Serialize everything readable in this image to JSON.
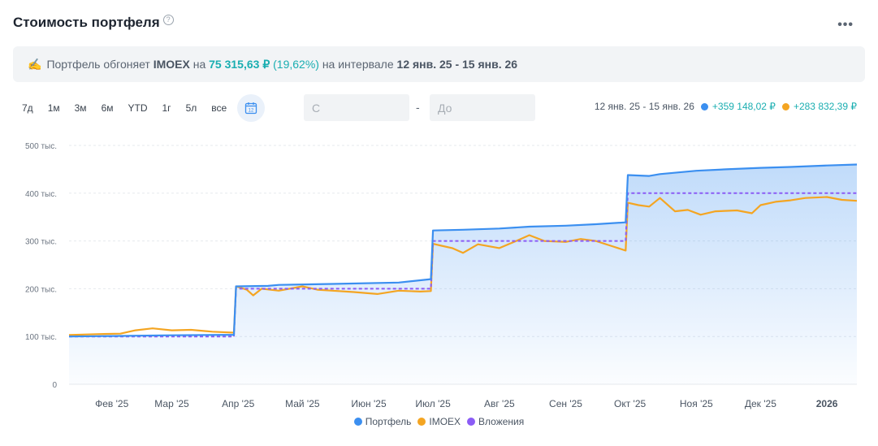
{
  "header": {
    "title": "Стоимость портфеля",
    "help": "?",
    "more": "•••"
  },
  "banner": {
    "icon": "✍",
    "text1": "Портфель обгоняет",
    "index": "IMOEX",
    "text2": "на",
    "amount": "75 315,63 ₽",
    "percent": "(19,62%)",
    "text3": "на интервале",
    "interval": "12 янв. 25 - 15 янв. 26"
  },
  "periods": [
    "7д",
    "1м",
    "3м",
    "6м",
    "YTD",
    "1г",
    "5л",
    "все"
  ],
  "date_from": {
    "placeholder": "С"
  },
  "date_to": {
    "placeholder": "До"
  },
  "dash": "-",
  "summary": {
    "range": "12 янв. 25 - 15 янв. 26",
    "portfolio_value": "+359 148,02 ₽",
    "imoex_value": "+283 832,39 ₽"
  },
  "colors": {
    "portfolio": "#3b8ff0",
    "imoex": "#f4a522",
    "invest": "#8b5cf6",
    "accent": "#1aaeb1"
  },
  "chart_data": {
    "type": "line",
    "x_range": [
      "2025-01-12",
      "2026-01-15"
    ],
    "ylim": [
      0,
      500000
    ],
    "y_ticks": [
      0,
      100000,
      200000,
      300000,
      400000,
      500000
    ],
    "y_tick_labels": [
      "0",
      "100 тыс.",
      "200 тыс.",
      "300 тыс.",
      "400 тыс.",
      "500 тыс."
    ],
    "x_ticks": [
      {
        "label": "Фев '25",
        "date": "2025-02-01"
      },
      {
        "label": "Мар '25",
        "date": "2025-03-01"
      },
      {
        "label": "Апр '25",
        "date": "2025-04-01"
      },
      {
        "label": "Май '25",
        "date": "2025-05-01"
      },
      {
        "label": "Июн '25",
        "date": "2025-06-01"
      },
      {
        "label": "Июл '25",
        "date": "2025-07-01"
      },
      {
        "label": "Авг '25",
        "date": "2025-08-01"
      },
      {
        "label": "Сен '25",
        "date": "2025-09-01"
      },
      {
        "label": "Окт '25",
        "date": "2025-10-01"
      },
      {
        "label": "Ноя '25",
        "date": "2025-11-01"
      },
      {
        "label": "Дек '25",
        "date": "2025-12-01"
      },
      {
        "label": "2026",
        "date": "2026-01-01"
      }
    ],
    "series": [
      {
        "name": "Портфель",
        "color": "#3b8ff0",
        "points": [
          [
            "2025-01-12",
            100000
          ],
          [
            "2025-02-01",
            101000
          ],
          [
            "2025-03-01",
            102500
          ],
          [
            "2025-03-30",
            103500
          ],
          [
            "2025-03-31",
            205000
          ],
          [
            "2025-04-15",
            206000
          ],
          [
            "2025-04-20",
            208000
          ],
          [
            "2025-05-15",
            210000
          ],
          [
            "2025-06-15",
            213000
          ],
          [
            "2025-06-30",
            220000
          ],
          [
            "2025-07-01",
            322000
          ],
          [
            "2025-07-15",
            323500
          ],
          [
            "2025-08-01",
            326000
          ],
          [
            "2025-08-15",
            330000
          ],
          [
            "2025-09-01",
            332000
          ],
          [
            "2025-09-15",
            335000
          ],
          [
            "2025-09-29",
            339000
          ],
          [
            "2025-09-30",
            438000
          ],
          [
            "2025-10-10",
            436000
          ],
          [
            "2025-10-15",
            440000
          ],
          [
            "2025-11-01",
            447000
          ],
          [
            "2025-11-15",
            450000
          ],
          [
            "2025-12-01",
            453000
          ],
          [
            "2025-12-15",
            455000
          ],
          [
            "2026-01-01",
            458000
          ],
          [
            "2026-01-15",
            460000
          ]
        ]
      },
      {
        "name": "IMOEX",
        "color": "#f4a522",
        "points": [
          [
            "2025-01-12",
            103000
          ],
          [
            "2025-01-25",
            105000
          ],
          [
            "2025-02-05",
            106000
          ],
          [
            "2025-02-12",
            113000
          ],
          [
            "2025-02-20",
            117000
          ],
          [
            "2025-03-01",
            113000
          ],
          [
            "2025-03-10",
            114000
          ],
          [
            "2025-03-20",
            110000
          ],
          [
            "2025-03-30",
            108000
          ],
          [
            "2025-03-31",
            205000
          ],
          [
            "2025-04-05",
            198000
          ],
          [
            "2025-04-08",
            186000
          ],
          [
            "2025-04-12",
            200000
          ],
          [
            "2025-04-20",
            196000
          ],
          [
            "2025-05-01",
            205000
          ],
          [
            "2025-05-08",
            198000
          ],
          [
            "2025-05-15",
            196000
          ],
          [
            "2025-05-25",
            193000
          ],
          [
            "2025-06-05",
            189000
          ],
          [
            "2025-06-15",
            196000
          ],
          [
            "2025-06-25",
            194000
          ],
          [
            "2025-06-30",
            195000
          ],
          [
            "2025-07-01",
            294000
          ],
          [
            "2025-07-05",
            290000
          ],
          [
            "2025-07-10",
            285000
          ],
          [
            "2025-07-15",
            275000
          ],
          [
            "2025-07-22",
            293000
          ],
          [
            "2025-08-01",
            285000
          ],
          [
            "2025-08-10",
            302000
          ],
          [
            "2025-08-15",
            312000
          ],
          [
            "2025-08-22",
            300000
          ],
          [
            "2025-09-01",
            298000
          ],
          [
            "2025-09-08",
            304000
          ],
          [
            "2025-09-15",
            300000
          ],
          [
            "2025-09-22",
            290000
          ],
          [
            "2025-09-29",
            280000
          ],
          [
            "2025-09-30",
            380000
          ],
          [
            "2025-10-05",
            375000
          ],
          [
            "2025-10-10",
            372000
          ],
          [
            "2025-10-15",
            390000
          ],
          [
            "2025-10-22",
            362000
          ],
          [
            "2025-10-28",
            365000
          ],
          [
            "2025-11-03",
            355000
          ],
          [
            "2025-11-10",
            362000
          ],
          [
            "2025-11-20",
            364000
          ],
          [
            "2025-11-27",
            358000
          ],
          [
            "2025-12-01",
            375000
          ],
          [
            "2025-12-08",
            382000
          ],
          [
            "2025-12-15",
            385000
          ],
          [
            "2025-12-22",
            390000
          ],
          [
            "2026-01-01",
            392000
          ],
          [
            "2026-01-08",
            386000
          ],
          [
            "2026-01-15",
            384000
          ]
        ]
      },
      {
        "name": "Вложения",
        "color": "#8b5cf6",
        "dashed": true,
        "points": [
          [
            "2025-01-12",
            100000
          ],
          [
            "2025-03-30",
            100000
          ],
          [
            "2025-03-31",
            200000
          ],
          [
            "2025-06-30",
            200000
          ],
          [
            "2025-07-01",
            300000
          ],
          [
            "2025-09-29",
            300000
          ],
          [
            "2025-09-30",
            400000
          ],
          [
            "2026-01-15",
            400000
          ]
        ]
      }
    ],
    "legend": [
      "Портфель",
      "IMOEX",
      "Вложения"
    ],
    "legend_position": "bottom-center",
    "grid": true
  }
}
